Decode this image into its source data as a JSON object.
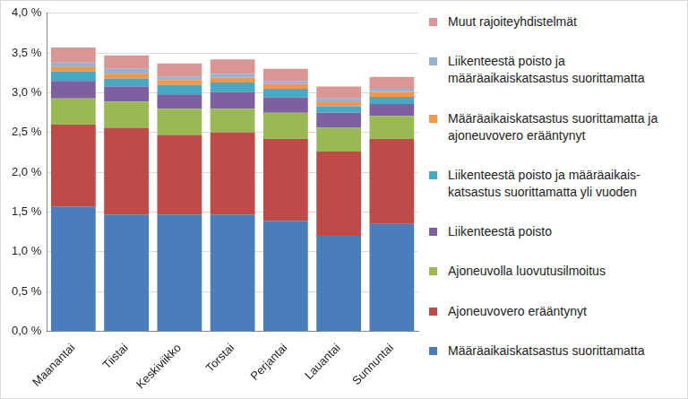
{
  "chart_data": {
    "type": "bar",
    "stacked": true,
    "grid": true,
    "legend": "right",
    "categories": [
      "Maanantai",
      "Tiistai",
      "Keskiviikko",
      "Torstai",
      "Perjantai",
      "Lauantai",
      "Sunnuntai"
    ],
    "ylim": [
      0,
      4
    ],
    "yticks": [
      {
        "value": 0,
        "label": "0,0 %"
      },
      {
        "value": 0.5,
        "label": "0,5 %"
      },
      {
        "value": 1,
        "label": "1,0 %"
      },
      {
        "value": 1.5,
        "label": "1,5 %"
      },
      {
        "value": 2,
        "label": "2,0 %"
      },
      {
        "value": 2.5,
        "label": "2,5 %"
      },
      {
        "value": 3,
        "label": "3,0 %"
      },
      {
        "value": 3.5,
        "label": "3,5 %"
      },
      {
        "value": 4,
        "label": "4,0 %"
      }
    ],
    "series": [
      {
        "name": "Määräaikaiskatsastus suorittamatta",
        "color": "#4a7ebb",
        "values": [
          1.57,
          1.47,
          1.47,
          1.47,
          1.39,
          1.2,
          1.35
        ]
      },
      {
        "name": "Ajoneuvovero erääntynyt",
        "color": "#be4b48",
        "values": [
          1.03,
          1.09,
          1.0,
          1.03,
          1.03,
          1.06,
          1.07
        ]
      },
      {
        "name": "Ajoneuvolla luovutusilmoitus",
        "color": "#98b954",
        "values": [
          0.33,
          0.33,
          0.33,
          0.3,
          0.33,
          0.3,
          0.29
        ]
      },
      {
        "name": "Liikenteestä poisto",
        "color": "#7d60a0",
        "values": [
          0.22,
          0.19,
          0.18,
          0.21,
          0.19,
          0.19,
          0.15
        ]
      },
      {
        "name": "Liikenteestä poisto ja määräaikais-katsastus suorittamatta yli vuoden",
        "color": "#46aac5",
        "values": [
          0.12,
          0.1,
          0.12,
          0.12,
          0.11,
          0.08,
          0.09
        ]
      },
      {
        "name": "Määräaikaiskatsastus suorittamatta ja ajoneuvovero erääntynyt",
        "color": "#f79646",
        "values": [
          0.06,
          0.06,
          0.06,
          0.06,
          0.06,
          0.05,
          0.06
        ]
      },
      {
        "name": "Liikenteestä poisto ja määräaikaiskatsastus suorittamatta",
        "color": "#95b3d7",
        "values": [
          0.05,
          0.06,
          0.04,
          0.05,
          0.04,
          0.05,
          0.04
        ]
      },
      {
        "name": "Muut rajoiteyhdistelmät",
        "color": "#d99694",
        "values": [
          0.19,
          0.17,
          0.17,
          0.18,
          0.15,
          0.15,
          0.15
        ]
      }
    ]
  }
}
